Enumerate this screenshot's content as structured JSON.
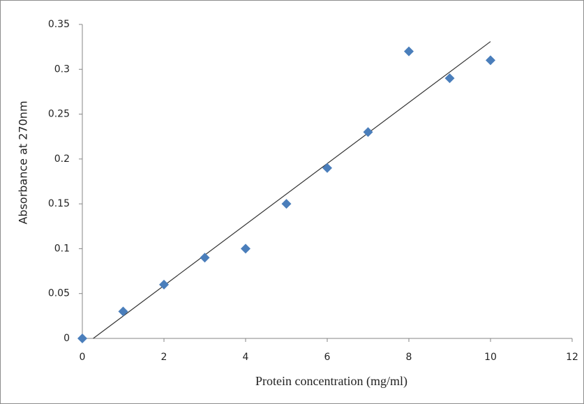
{
  "chart_data": {
    "type": "scatter",
    "x_label": "Protein concentration (mg/ml)",
    "y_label": "Absorbance at 270nm",
    "series": [
      {
        "color": "#4a7ebb",
        "x": [
          0,
          1,
          2,
          3,
          4,
          5,
          6,
          7,
          8,
          9,
          10
        ],
        "values": [
          0,
          0.03,
          0.06,
          0.09,
          0.1,
          0.15,
          0.19,
          0.23,
          0.32,
          0.29,
          0.31
        ]
      }
    ],
    "trendline": "linear",
    "xlim": [
      0,
      12
    ],
    "xticks": [
      0,
      2,
      4,
      6,
      8,
      10,
      12
    ],
    "ylim": [
      0,
      0.35
    ],
    "yticks": [
      0,
      0.05,
      0.1,
      0.15,
      0.2,
      0.25,
      0.3,
      0.35
    ],
    "grid": false
  }
}
